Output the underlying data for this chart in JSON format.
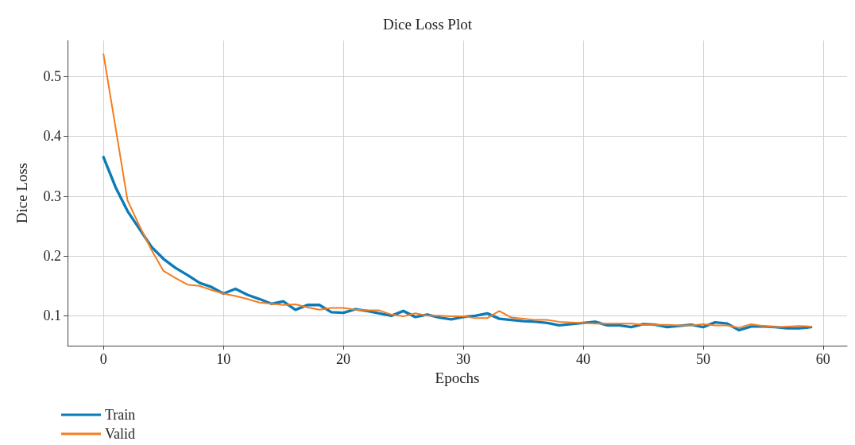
{
  "chart_data": {
    "type": "line",
    "title": "Dice Loss Plot",
    "xlabel": "Epochs",
    "ylabel": "Dice Loss",
    "x": [
      0,
      1,
      2,
      3,
      4,
      5,
      6,
      7,
      8,
      9,
      10,
      11,
      12,
      13,
      14,
      15,
      16,
      17,
      18,
      19,
      20,
      21,
      22,
      23,
      24,
      25,
      26,
      27,
      28,
      29,
      30,
      31,
      32,
      33,
      34,
      35,
      36,
      37,
      38,
      39,
      40,
      41,
      42,
      43,
      44,
      45,
      46,
      47,
      48,
      49,
      50,
      51,
      52,
      53,
      54,
      55,
      56,
      57,
      58,
      59
    ],
    "series": [
      {
        "name": "Train",
        "color": "#0b7bb8",
        "values": [
          0.365,
          0.315,
          0.275,
          0.245,
          0.215,
          0.195,
          0.18,
          0.168,
          0.155,
          0.148,
          0.137,
          0.145,
          0.135,
          0.128,
          0.12,
          0.124,
          0.11,
          0.118,
          0.118,
          0.106,
          0.105,
          0.111,
          0.108,
          0.104,
          0.1,
          0.108,
          0.098,
          0.102,
          0.097,
          0.094,
          0.098,
          0.1,
          0.104,
          0.095,
          0.093,
          0.091,
          0.09,
          0.088,
          0.084,
          0.086,
          0.088,
          0.09,
          0.084,
          0.084,
          0.081,
          0.086,
          0.085,
          0.081,
          0.083,
          0.085,
          0.081,
          0.089,
          0.087,
          0.076,
          0.082,
          0.082,
          0.081,
          0.079,
          0.079,
          0.081
        ]
      },
      {
        "name": "Valid",
        "color": "#f57c1f",
        "values": [
          0.537,
          0.415,
          0.293,
          0.25,
          0.21,
          0.175,
          0.163,
          0.152,
          0.15,
          0.143,
          0.137,
          0.133,
          0.128,
          0.122,
          0.12,
          0.118,
          0.119,
          0.114,
          0.11,
          0.113,
          0.113,
          0.11,
          0.109,
          0.109,
          0.102,
          0.099,
          0.104,
          0.1,
          0.1,
          0.099,
          0.099,
          0.096,
          0.096,
          0.108,
          0.097,
          0.095,
          0.093,
          0.093,
          0.09,
          0.089,
          0.088,
          0.087,
          0.087,
          0.087,
          0.087,
          0.085,
          0.085,
          0.085,
          0.084,
          0.084,
          0.086,
          0.084,
          0.084,
          0.08,
          0.086,
          0.083,
          0.081,
          0.082,
          0.083,
          0.082
        ]
      }
    ],
    "xlim": [
      -3,
      62
    ],
    "ylim": [
      0.05,
      0.56
    ],
    "xticks": [
      0,
      10,
      20,
      30,
      40,
      50,
      60
    ],
    "yticks": [
      0.1,
      0.2,
      0.3,
      0.4,
      0.5
    ],
    "grid": true,
    "legend": "bottom left",
    "marker": "none",
    "line_style": "solid"
  }
}
